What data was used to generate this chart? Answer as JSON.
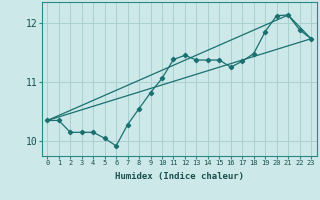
{
  "xlabel": "Humidex (Indice chaleur)",
  "ylabel": "",
  "xlim": [
    -0.5,
    23.5
  ],
  "ylim": [
    9.75,
    12.35
  ],
  "yticks": [
    10,
    11,
    12
  ],
  "xticks": [
    0,
    1,
    2,
    3,
    4,
    5,
    6,
    7,
    8,
    9,
    10,
    11,
    12,
    13,
    14,
    15,
    16,
    17,
    18,
    19,
    20,
    21,
    22,
    23
  ],
  "bg_color": "#cce8e8",
  "grid_color": "#aad0d0",
  "line_color": "#1a7070",
  "line1": {
    "x": [
      0,
      1,
      2,
      3,
      4,
      5,
      6,
      7,
      8,
      9,
      10,
      11,
      12,
      13,
      14,
      15,
      16,
      17,
      18,
      19,
      20,
      21,
      22,
      23
    ],
    "y": [
      10.35,
      10.35,
      10.15,
      10.15,
      10.15,
      10.05,
      9.92,
      10.28,
      10.55,
      10.82,
      11.06,
      11.38,
      11.45,
      11.37,
      11.37,
      11.37,
      11.25,
      11.35,
      11.48,
      11.85,
      12.12,
      12.13,
      11.88,
      11.73
    ]
  },
  "line2": {
    "x": [
      0,
      21
    ],
    "y": [
      10.35,
      12.13
    ]
  },
  "line3": {
    "x": [
      0,
      23
    ],
    "y": [
      10.35,
      11.73
    ]
  },
  "line4": {
    "x": [
      21,
      23
    ],
    "y": [
      12.13,
      11.73
    ]
  }
}
